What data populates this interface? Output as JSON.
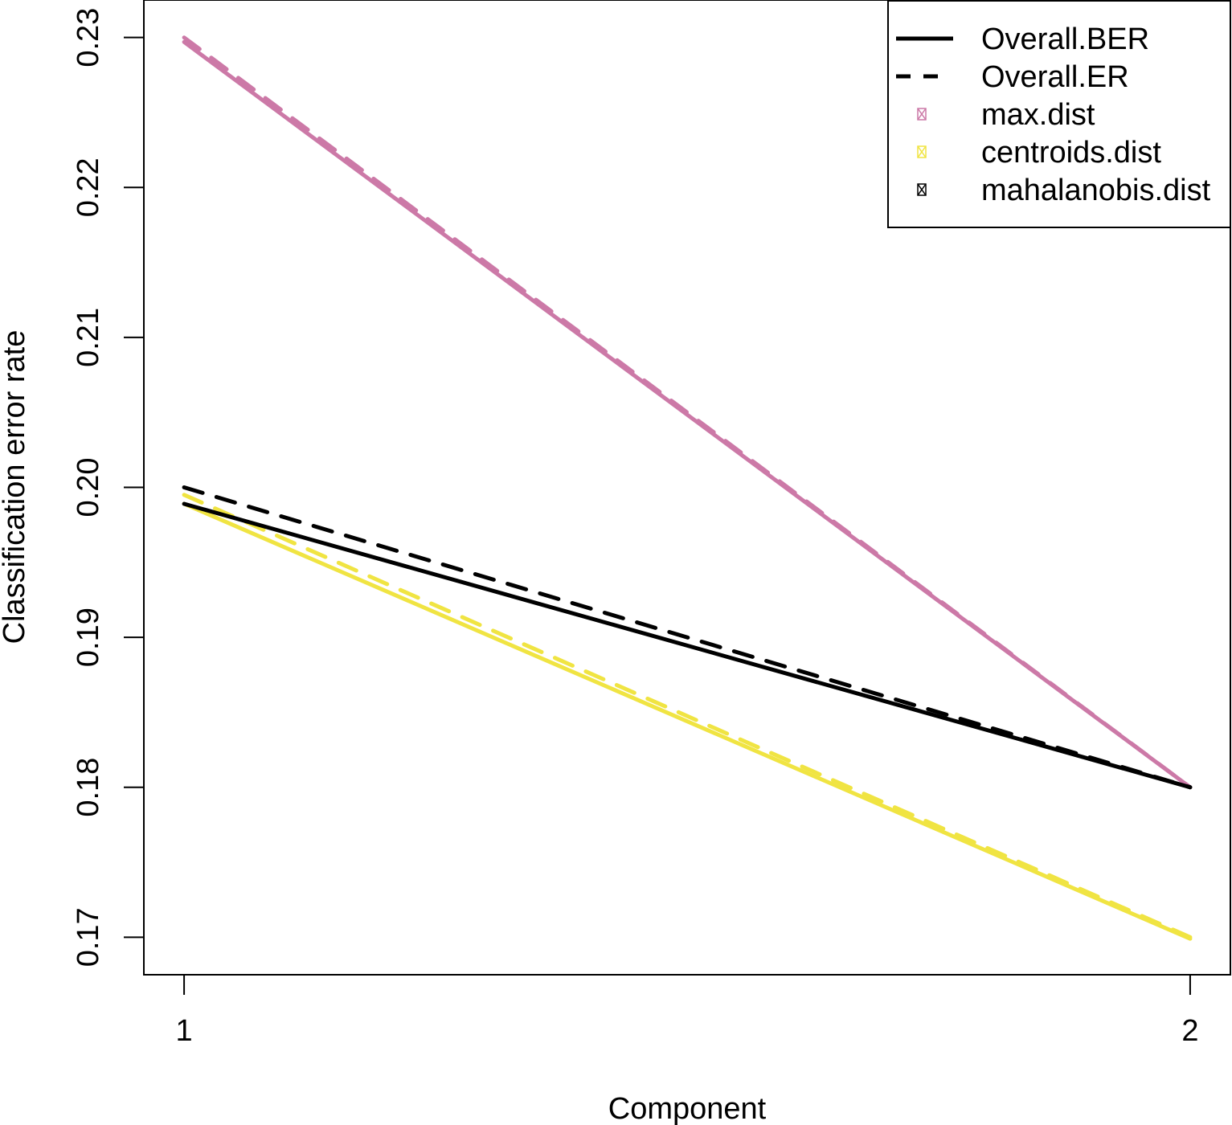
{
  "chart_data": {
    "type": "line",
    "title": "",
    "xlabel": "Component",
    "ylabel": "Classification error rate",
    "x": [
      1,
      2
    ],
    "x_ticks": [
      "1",
      "2"
    ],
    "y_ticks": [
      "0.17",
      "0.18",
      "0.19",
      "0.20",
      "0.21",
      "0.22",
      "0.23"
    ],
    "xlim": [
      0.96,
      2.04
    ],
    "ylim": [
      0.1675,
      0.2325
    ],
    "grid": false,
    "legend_position": "top-right",
    "legend": [
      {
        "label": "Overall.BER",
        "kind": "line",
        "dash": "solid",
        "color": "#000000"
      },
      {
        "label": "Overall.ER",
        "kind": "line",
        "dash": "dashed",
        "color": "#000000"
      },
      {
        "label": "max.dist",
        "kind": "marker",
        "color": "#CC79A7"
      },
      {
        "label": "centroids.dist",
        "kind": "marker",
        "color": "#F0E442"
      },
      {
        "label": "mahalanobis.dist",
        "kind": "marker",
        "color": "#000000"
      }
    ],
    "series": [
      {
        "name": "max.dist Overall.BER",
        "distance": "max.dist",
        "measure": "Overall.BER",
        "color": "#CC79A7",
        "dash": "solid",
        "values": [
          0.2297,
          0.18
        ]
      },
      {
        "name": "max.dist Overall.ER",
        "distance": "max.dist",
        "measure": "Overall.ER",
        "color": "#CC79A7",
        "dash": "dashed",
        "values": [
          0.23,
          0.18
        ]
      },
      {
        "name": "centroids.dist Overall.BER",
        "distance": "centroids.dist",
        "measure": "Overall.BER",
        "color": "#F0E442",
        "dash": "solid",
        "values": [
          0.1989,
          0.1699
        ]
      },
      {
        "name": "centroids.dist Overall.ER",
        "distance": "centroids.dist",
        "measure": "Overall.ER",
        "color": "#F0E442",
        "dash": "dashed",
        "values": [
          0.1995,
          0.17
        ]
      },
      {
        "name": "mahalanobis.dist Overall.BER",
        "distance": "mahalanobis.dist",
        "measure": "Overall.BER",
        "color": "#000000",
        "dash": "solid",
        "values": [
          0.1989,
          0.18
        ]
      },
      {
        "name": "mahalanobis.dist Overall.ER",
        "distance": "mahalanobis.dist",
        "measure": "Overall.ER",
        "color": "#000000",
        "dash": "dashed",
        "values": [
          0.2,
          0.18
        ]
      }
    ]
  }
}
